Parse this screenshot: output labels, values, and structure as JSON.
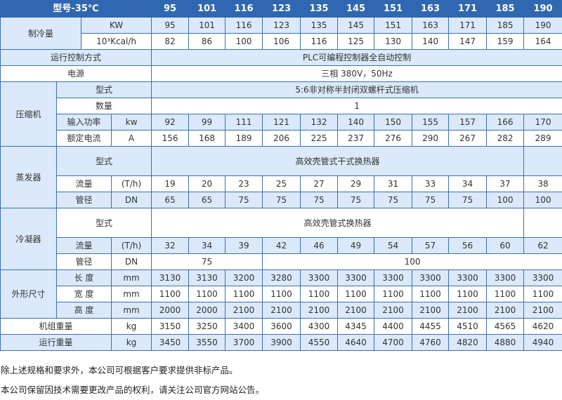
{
  "header": {
    "label": "型号-35℃",
    "models": [
      "95",
      "101",
      "116",
      "123",
      "135",
      "145",
      "151",
      "163",
      "171",
      "185",
      "190"
    ]
  },
  "cooling_capacity": {
    "label": "制冷量",
    "kw": {
      "unit": "KW",
      "values": [
        "95",
        "101",
        "116",
        "123",
        "135",
        "145",
        "151",
        "163",
        "171",
        "185",
        "190"
      ]
    },
    "kcal": {
      "unit": "10³Kcal/h",
      "values": [
        "82",
        "86",
        "100",
        "106",
        "116",
        "125",
        "130",
        "140",
        "147",
        "159",
        "164"
      ]
    }
  },
  "control": {
    "label": "运行控制方式",
    "value": "PLC可编程控制器全自动控制"
  },
  "power": {
    "label": "电源",
    "value": "三相 380V，50Hz"
  },
  "compressor": {
    "label": "压缩机",
    "type": {
      "label": "型式",
      "value": "5:6非对称半封闭双螺杆式压缩机"
    },
    "quantity": {
      "label": "数量",
      "value": "1"
    },
    "input_power": {
      "label": "输入功率",
      "unit": "kw",
      "values": [
        "92",
        "99",
        "111",
        "121",
        "132",
        "140",
        "150",
        "155",
        "157",
        "166",
        "170"
      ]
    },
    "rated_current": {
      "label": "额定电流",
      "unit": "A",
      "values": [
        "156",
        "168",
        "189",
        "206",
        "225",
        "237",
        "276",
        "290",
        "267",
        "282",
        "289"
      ]
    }
  },
  "evaporator": {
    "label": "蒸发器",
    "type": {
      "label": "型式",
      "value": "高效壳管式干式换热器"
    },
    "flow": {
      "label": "流量",
      "unit": "(T/h)",
      "values": [
        "19",
        "20",
        "23",
        "25",
        "27",
        "29",
        "31",
        "33",
        "34",
        "37",
        "38"
      ]
    },
    "pipe": {
      "label": "管径",
      "unit": "DN",
      "values": [
        "65",
        "65",
        "75",
        "75",
        "75",
        "75",
        "75",
        "75",
        "75",
        "100",
        "100"
      ]
    }
  },
  "condenser": {
    "label": "冷凝器",
    "type": {
      "label": "型式",
      "value": "高效壳管式换热器"
    },
    "flow": {
      "label": "流量",
      "unit": "(T/h)",
      "values": [
        "32",
        "34",
        "39",
        "42",
        "46",
        "49",
        "54",
        "57",
        "56",
        "60",
        "62"
      ]
    },
    "pipe": {
      "label": "管径",
      "unit": "DN",
      "values": [
        "75",
        "100"
      ]
    }
  },
  "dimensions": {
    "label": "外形尺寸",
    "length": {
      "label": "长 度",
      "unit": "mm",
      "values": [
        "3130",
        "3130",
        "3200",
        "3280",
        "3300",
        "3300",
        "3300",
        "3300",
        "3300",
        "3300",
        "3300"
      ]
    },
    "width": {
      "label": "宽 度",
      "unit": "mm",
      "values": [
        "1100",
        "1100",
        "1100",
        "1100",
        "1100",
        "1100",
        "1100",
        "1100",
        "1100",
        "1100",
        "1100"
      ]
    },
    "height": {
      "label": "高 度",
      "unit": "mm",
      "values": [
        "2000",
        "2000",
        "2100",
        "2100",
        "2100",
        "2100",
        "2100",
        "2100",
        "2100",
        "2100",
        "2100"
      ]
    }
  },
  "unit_weight": {
    "label": "机组重量",
    "unit": "kg",
    "values": [
      "3150",
      "3250",
      "3400",
      "3600",
      "4300",
      "4345",
      "4400",
      "4455",
      "4510",
      "4565",
      "4620"
    ]
  },
  "operating_weight": {
    "label": "运行重量",
    "unit": "kg",
    "values": [
      "3450",
      "3550",
      "3700",
      "3900",
      "4550",
      "4640",
      "4700",
      "4760",
      "4820",
      "4880",
      "4940"
    ]
  },
  "notes": [
    "除上述规格和要求外，本公司可根据客户要求提供非标产品。",
    "本公司保留因技术需要更改产品的权利，请关注公司官方网站公告。"
  ],
  "colors": {
    "header": "#2f67b0",
    "row_alt": "#dbe9fa",
    "border": "#3a6fb5"
  }
}
